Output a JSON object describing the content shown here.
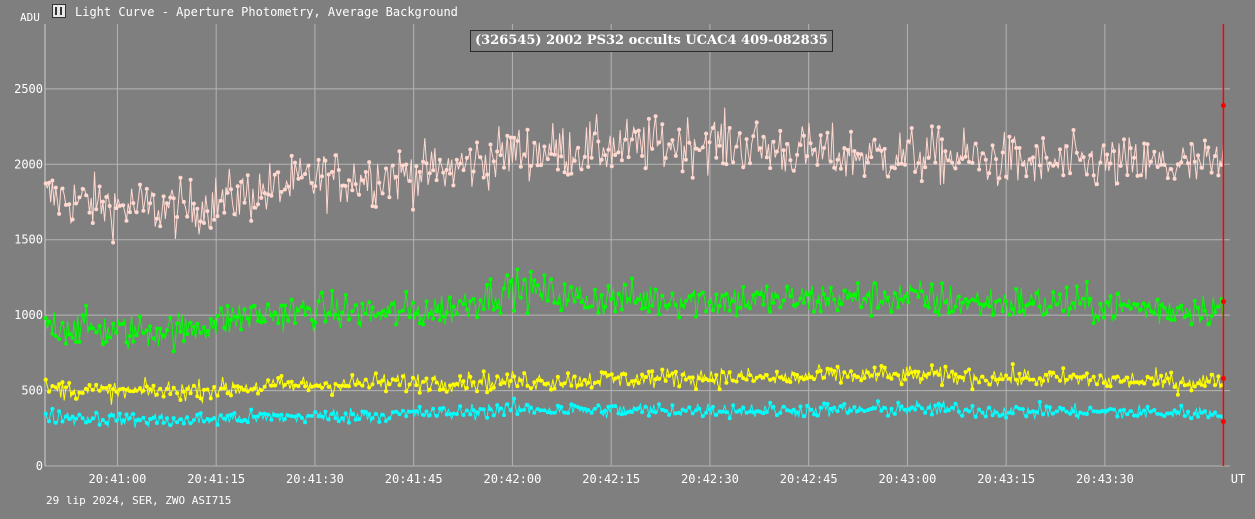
{
  "window": {
    "title": "Light Curve - Aperture Photometry, Average Background",
    "icon": "light-curve-app-icon"
  },
  "footer_info": "29 lip 2024, SER, ZWO ASI715",
  "colors": {
    "background": "#7f7f7f",
    "grid": "#b4b4b4",
    "text": "#ffffff",
    "cursor": "#ff0000"
  },
  "chart_data": {
    "type": "line",
    "title": "(326545) 2002 PS32 occults UCAC4 409-082835",
    "xlabel": "UT",
    "ylabel": "ADU",
    "x_range": [
      "20:40:49",
      "20:43:49"
    ],
    "ylim": [
      0,
      2930
    ],
    "x_ticks": [
      "20:41:00",
      "20:41:15",
      "20:41:30",
      "20:41:45",
      "20:42:00",
      "20:42:15",
      "20:42:30",
      "20:42:45",
      "20:43:00",
      "20:43:15",
      "20:43:30"
    ],
    "y_ticks": [
      0,
      500,
      1000,
      1500,
      2000,
      2500
    ],
    "grid": true,
    "markers": "dots connected by lines",
    "series": [
      {
        "color": "#ffd8d0",
        "x": [
          "20:40:50",
          "20:41:00",
          "20:41:10",
          "20:41:20",
          "20:41:30",
          "20:41:40",
          "20:41:50",
          "20:42:00",
          "20:42:10",
          "20:42:20",
          "20:42:30",
          "20:42:40",
          "20:42:50",
          "20:43:00",
          "20:43:10",
          "20:43:20",
          "20:43:30",
          "20:43:40",
          "20:43:48"
        ],
        "values": [
          1780,
          1720,
          1700,
          1800,
          1900,
          1920,
          1960,
          2080,
          2100,
          2120,
          2150,
          2100,
          2060,
          2060,
          2040,
          2000,
          2000,
          1990,
          1990
        ],
        "noise": 170
      },
      {
        "color": "#00ff00",
        "x": [
          "20:40:50",
          "20:41:00",
          "20:41:10",
          "20:41:20",
          "20:41:30",
          "20:41:40",
          "20:41:50",
          "20:42:00",
          "20:42:10",
          "20:42:20",
          "20:42:30",
          "20:42:40",
          "20:42:50",
          "20:43:00",
          "20:43:10",
          "20:43:20",
          "20:43:30",
          "20:43:40",
          "20:43:48"
        ],
        "values": [
          940,
          890,
          900,
          1000,
          1030,
          1010,
          1040,
          1180,
          1110,
          1110,
          1100,
          1100,
          1110,
          1120,
          1080,
          1080,
          1060,
          1040,
          1050
        ],
        "noise": 110
      },
      {
        "color": "#ffff00",
        "x": [
          "20:40:50",
          "20:41:00",
          "20:41:10",
          "20:41:20",
          "20:41:30",
          "20:41:40",
          "20:41:50",
          "20:42:00",
          "20:42:10",
          "20:42:20",
          "20:42:30",
          "20:42:40",
          "20:42:50",
          "20:43:00",
          "20:43:10",
          "20:43:20",
          "20:43:30",
          "20:43:40",
          "20:43:48"
        ],
        "values": [
          510,
          490,
          500,
          520,
          540,
          550,
          560,
          560,
          570,
          580,
          590,
          580,
          600,
          600,
          590,
          580,
          570,
          560,
          560
        ],
        "noise": 60
      },
      {
        "color": "#00ffff",
        "x": [
          "20:40:50",
          "20:41:00",
          "20:41:10",
          "20:41:20",
          "20:41:30",
          "20:41:40",
          "20:41:50",
          "20:42:00",
          "20:42:10",
          "20:42:20",
          "20:42:30",
          "20:42:40",
          "20:42:50",
          "20:43:00",
          "20:43:10",
          "20:43:20",
          "20:43:30",
          "20:43:40",
          "20:43:48"
        ],
        "values": [
          330,
          310,
          300,
          320,
          330,
          340,
          350,
          380,
          370,
          370,
          370,
          370,
          370,
          380,
          370,
          360,
          360,
          350,
          350
        ],
        "noise": 45
      }
    ],
    "cursor": {
      "x": "20:43:48",
      "markers": [
        2390,
        1090,
        580,
        295
      ]
    }
  }
}
